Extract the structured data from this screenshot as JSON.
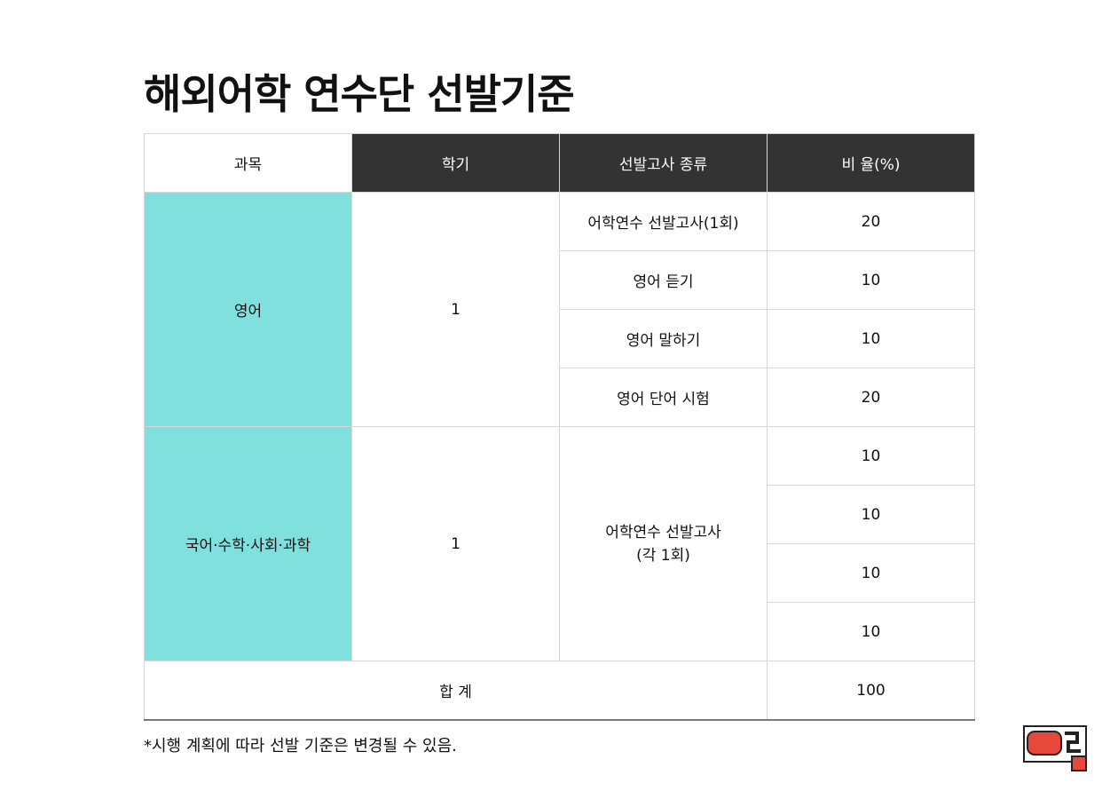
{
  "title": "해외어학 연수단 선발기준",
  "table": {
    "headers": [
      "과목",
      "학기",
      "선발고사 종류",
      "비 율(%)"
    ],
    "group1": {
      "subject": "영어",
      "semester": "1",
      "rows": [
        {
          "exam": "어학연수 선발고사(1회)",
          "ratio": "20"
        },
        {
          "exam": "영어 듣기",
          "ratio": "10"
        },
        {
          "exam": "영어 말하기",
          "ratio": "10"
        },
        {
          "exam": "영어 단어 시험",
          "ratio": "20"
        }
      ]
    },
    "group2": {
      "subject": "국어·수학·사회·과학",
      "semester": "1",
      "exam_line1": "어학연수 선발고사",
      "exam_line2": "(각 1회)",
      "ratios": [
        "10",
        "10",
        "10",
        "10"
      ]
    },
    "total_label": "합 계",
    "total_value": "100"
  },
  "footnote": "*시행 계획에 따라 선발 기준은 변경될 수 있음.",
  "colors": {
    "header_bg": "#333333",
    "subject_bg": "#7fe0dd",
    "logo_red": "#e8483b"
  },
  "logo_icon": "brand-logo-icon"
}
